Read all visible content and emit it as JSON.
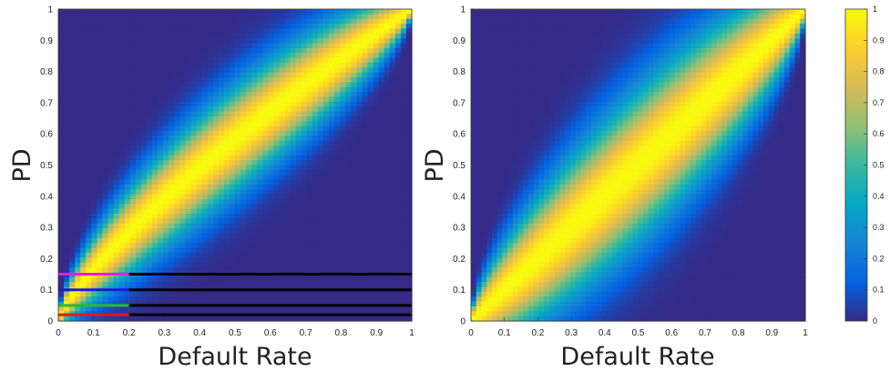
{
  "chart_data": [
    {
      "type": "heatmap",
      "xlabel": "Default Rate",
      "ylabel": "PD",
      "xlim": [
        0,
        1
      ],
      "ylim": [
        0,
        1
      ],
      "xticks": [
        "0",
        "0.1",
        "0.2",
        "0.3",
        "0.4",
        "0.5",
        "0.6",
        "0.7",
        "0.8",
        "0.9",
        "1"
      ],
      "yticks": [
        "0",
        "0.1",
        "0.2",
        "0.3",
        "0.4",
        "0.5",
        "0.6",
        "0.7",
        "0.8",
        "0.9",
        "1"
      ],
      "ridge": "concave band from (0,0) to (1,1), peak density along PD ≈ DR with PD above DR at low values",
      "band_spread": 0.11,
      "band_exponent": 0.78,
      "overlay_lines": [
        {
          "pd": 0.15,
          "colored_x": [
            0,
            0.2
          ],
          "colored": "#e020e0",
          "rest": "#000000"
        },
        {
          "pd": 0.1,
          "colored_x": [
            0,
            0.2
          ],
          "colored": "#1a1ad8",
          "rest": "#000000"
        },
        {
          "pd": 0.05,
          "colored_x": [
            0,
            0.2
          ],
          "colored": "#2db82d",
          "rest": "#000000"
        },
        {
          "pd": 0.02,
          "colored_x": [
            0,
            0.2
          ],
          "colored": "#e01818",
          "rest": "#000000"
        }
      ]
    },
    {
      "type": "heatmap",
      "xlabel": "Default Rate",
      "ylabel": "PD",
      "xlim": [
        0,
        1
      ],
      "ylim": [
        0,
        1
      ],
      "xticks": [
        "0",
        "0.1",
        "0.2",
        "0.3",
        "0.4",
        "0.5",
        "0.6",
        "0.7",
        "0.8",
        "0.9",
        "1"
      ],
      "yticks": [
        "0",
        "0.1",
        "0.2",
        "0.3",
        "0.4",
        "0.5",
        "0.6",
        "0.7",
        "0.8",
        "0.9",
        "1"
      ],
      "ridge": "symmetric band along PD = DR, widest at the middle",
      "band_spread": 0.16,
      "band_exponent": 1.0,
      "overlay_lines": []
    }
  ],
  "colorbar": {
    "range": [
      0,
      1
    ],
    "ticks": [
      "0",
      "0.1",
      "0.2",
      "0.3",
      "0.4",
      "0.5",
      "0.6",
      "0.7",
      "0.8",
      "0.9",
      "1"
    ],
    "colormap": "parula",
    "stops": [
      "#352a87",
      "#0363e1",
      "#1485d4",
      "#06a7c6",
      "#38b99e",
      "#92bf73",
      "#d9ba56",
      "#fcce2e",
      "#f9fb0e"
    ]
  }
}
